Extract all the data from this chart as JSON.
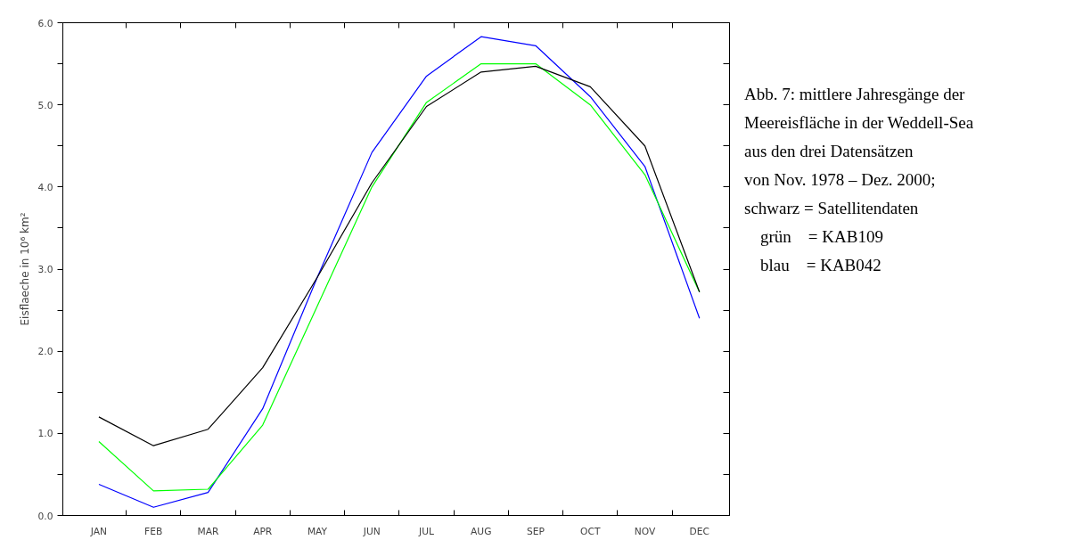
{
  "chart_data": {
    "type": "line",
    "ylabel": "Eisflaeche in 10⁶ km²",
    "categories": [
      "JAN",
      "FEB",
      "MAR",
      "APR",
      "MAY",
      "JUN",
      "JUL",
      "AUG",
      "SEP",
      "OCT",
      "NOV",
      "DEC"
    ],
    "series": [
      {
        "color": "#000000",
        "values": [
          1.2,
          0.85,
          1.05,
          1.8,
          2.9,
          4.05,
          4.98,
          5.4,
          5.47,
          5.22,
          4.5,
          2.72
        ]
      },
      {
        "color": "#00ff00",
        "values": [
          0.9,
          0.3,
          0.32,
          1.1,
          2.55,
          4.0,
          5.03,
          5.5,
          5.5,
          5.0,
          4.15,
          2.72
        ]
      },
      {
        "color": "#0000ff",
        "values": [
          0.38,
          0.1,
          0.28,
          1.3,
          2.9,
          4.42,
          5.35,
          5.83,
          5.72,
          5.1,
          4.25,
          2.4
        ]
      }
    ],
    "ylim": [
      0,
      6
    ],
    "yticks": [
      {
        "value": 0,
        "label": "0.0"
      },
      {
        "value": 0.5,
        "label": null
      },
      {
        "value": 1,
        "label": "1.0"
      },
      {
        "value": 1.5,
        "label": null
      },
      {
        "value": 2,
        "label": "2.0"
      },
      {
        "value": 2.5,
        "label": null
      },
      {
        "value": 3,
        "label": "3.0"
      },
      {
        "value": 3.5,
        "label": null
      },
      {
        "value": 4,
        "label": "4.0"
      },
      {
        "value": 4.5,
        "label": null
      },
      {
        "value": 5,
        "label": "5.0"
      },
      {
        "value": 5.5,
        "label": null
      },
      {
        "value": 6,
        "label": "6.0"
      }
    ],
    "grid": false,
    "marker": "none",
    "line_style": "solid",
    "annotations": [
      "Abb. 7: mittlere Jahresgänge der",
      "Meereisfläche in der Weddell-Sea",
      "aus den drei Datensätzen",
      "von Nov. 1978 – Dez. 2000;",
      "schwarz = Satellitendaten",
      "grün    = KAB109",
      "blau    = KAB042"
    ]
  }
}
